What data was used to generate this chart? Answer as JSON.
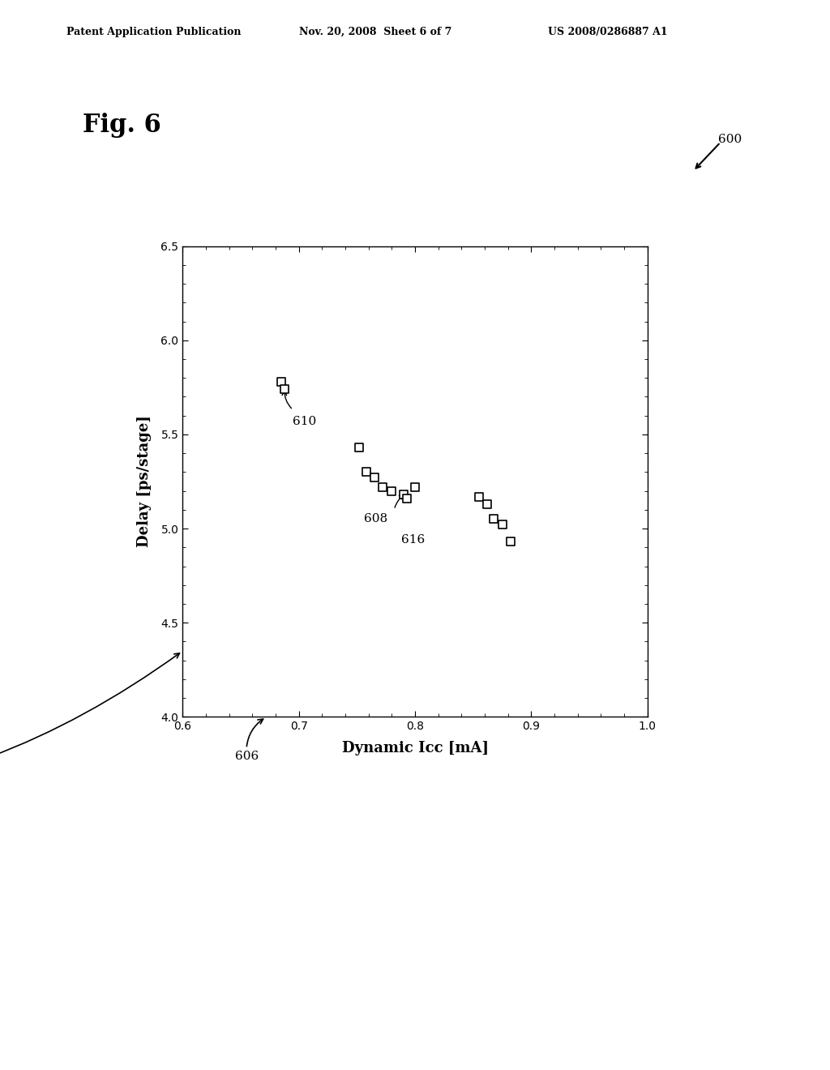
{
  "fig_label": "Fig. 6",
  "fig_number": "600",
  "patent_left": "Patent Application Publication",
  "patent_mid": "Nov. 20, 2008  Sheet 6 of 7",
  "patent_right": "US 2008/0286887 A1",
  "xlabel": "Dynamic Icc [mA]",
  "ylabel": "Delay [ps/stage]",
  "xlim": [
    0.6,
    1.0
  ],
  "ylim": [
    4.0,
    6.5
  ],
  "xticks": [
    0.6,
    0.7,
    0.8,
    0.9,
    1.0
  ],
  "yticks": [
    4.0,
    4.5,
    5.0,
    5.5,
    6.0,
    6.5
  ],
  "scatter_points": [
    [
      0.685,
      5.78
    ],
    [
      0.688,
      5.74
    ],
    [
      0.752,
      5.43
    ],
    [
      0.758,
      5.3
    ],
    [
      0.765,
      5.27
    ],
    [
      0.772,
      5.22
    ],
    [
      0.78,
      5.2
    ],
    [
      0.79,
      5.18
    ],
    [
      0.793,
      5.16
    ],
    [
      0.8,
      5.22
    ],
    [
      0.855,
      5.17
    ],
    [
      0.862,
      5.13
    ],
    [
      0.868,
      5.05
    ],
    [
      0.875,
      5.02
    ],
    [
      0.882,
      4.93
    ]
  ],
  "background_color": "#ffffff",
  "marker_color": "black",
  "marker_facecolor": "white",
  "marker_size": 50,
  "font_size_axis_label": 13,
  "font_size_tick": 10,
  "font_size_fig_label": 22,
  "font_size_annotation": 11,
  "font_size_patent": 9
}
